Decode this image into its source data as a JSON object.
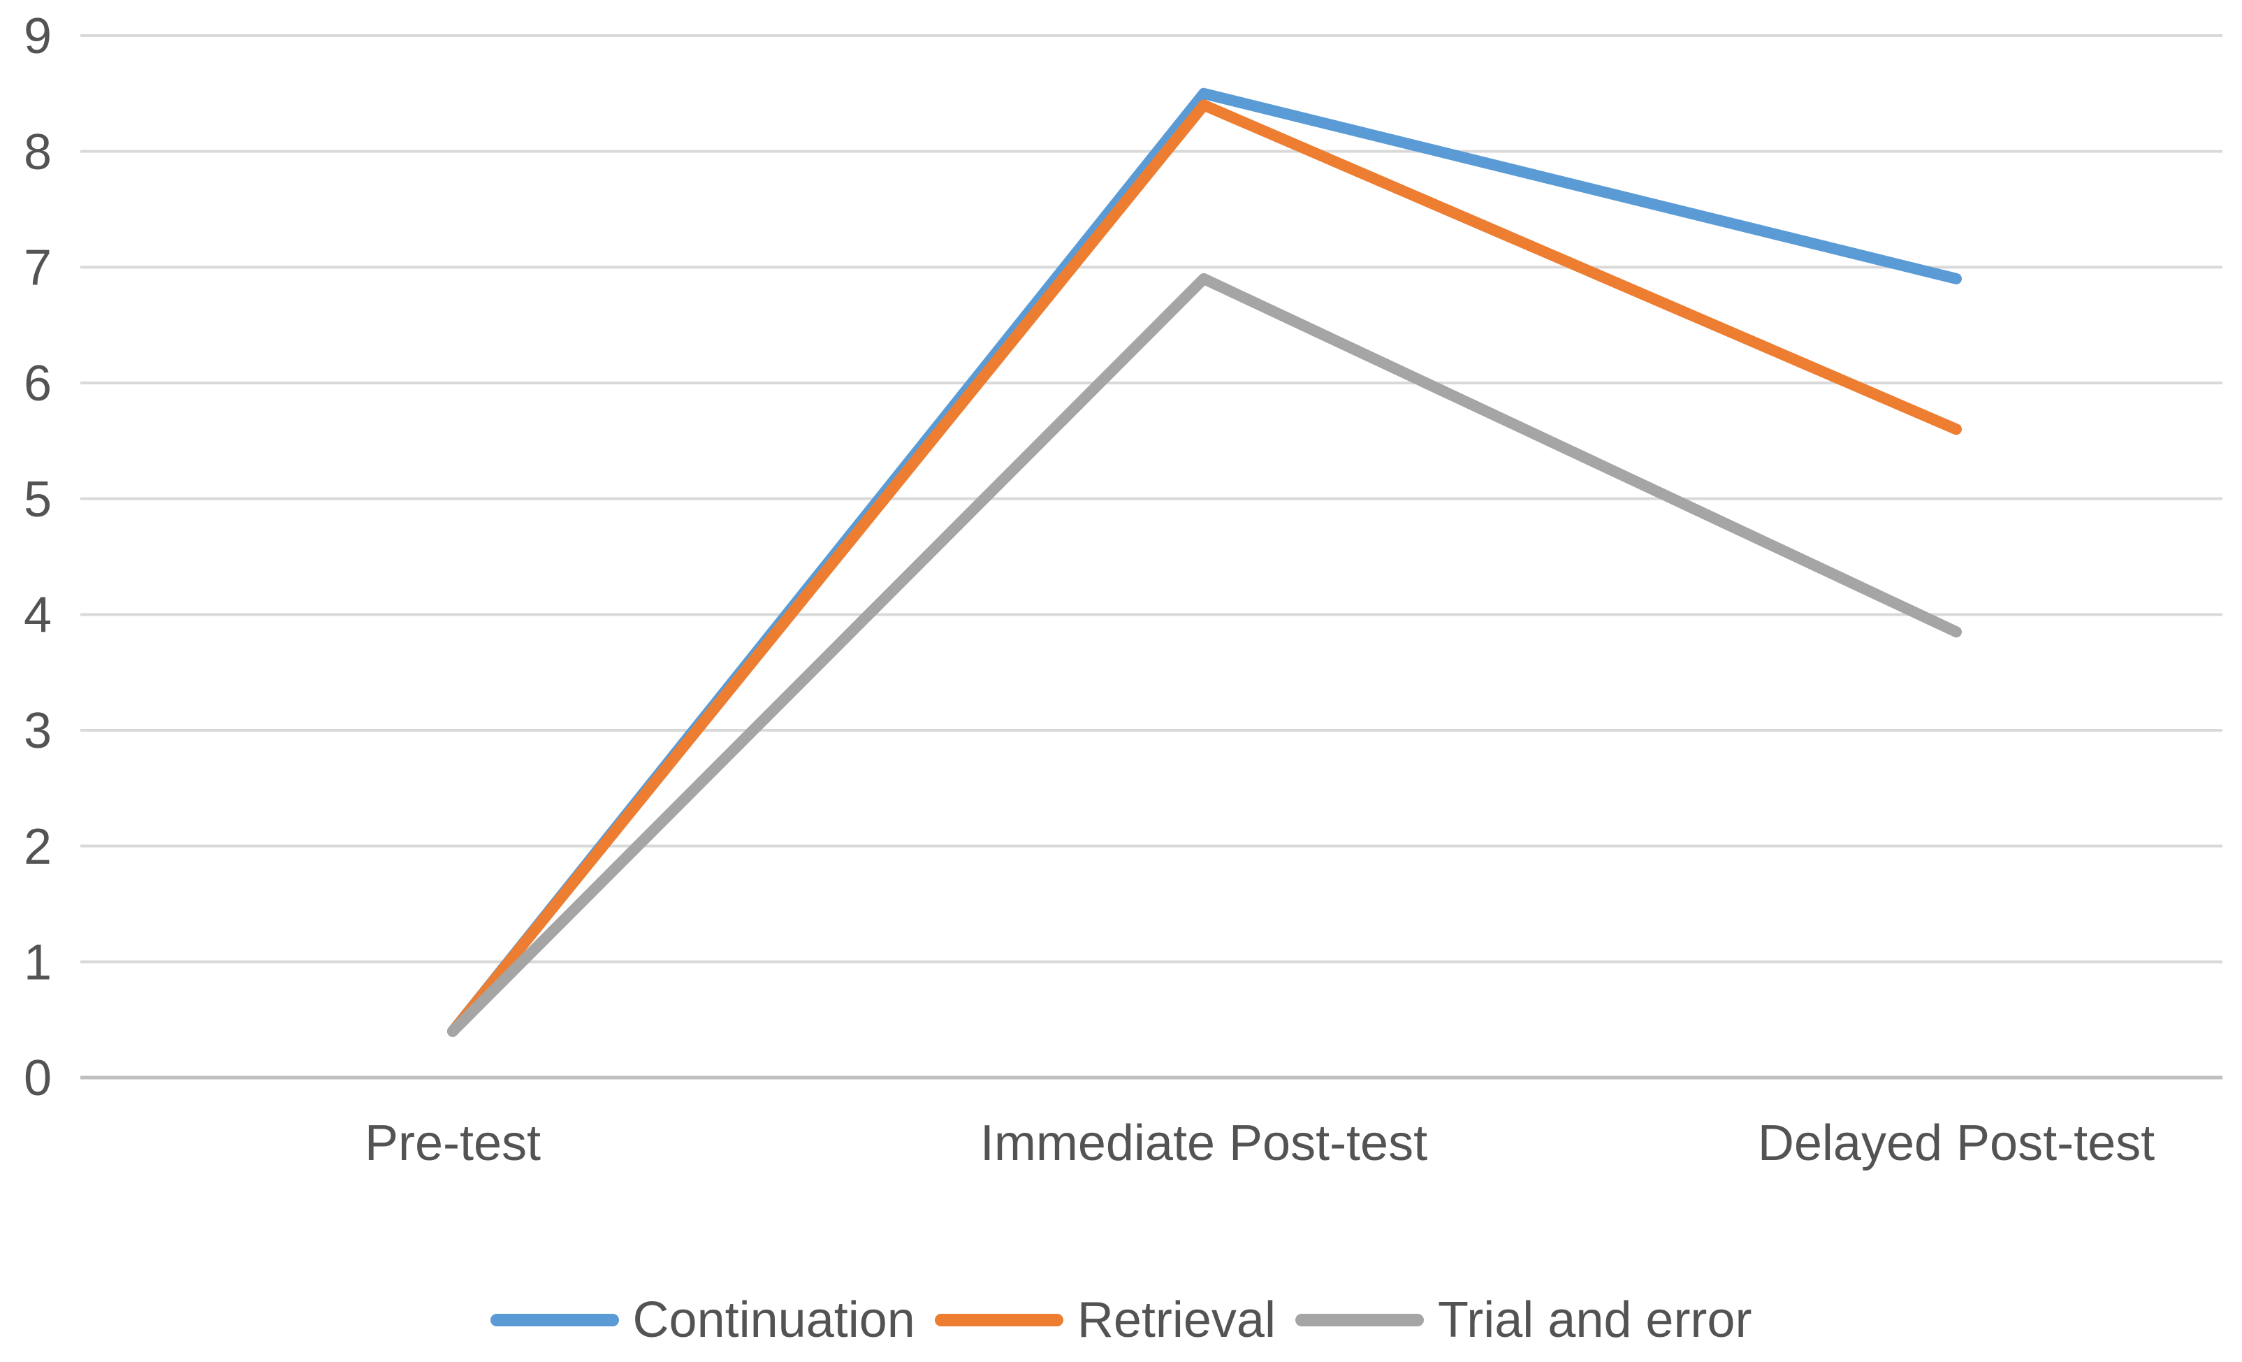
{
  "chart_data": {
    "type": "line",
    "title": "",
    "categories": [
      "Pre-test",
      "Immediate Post-test",
      "Delayed Post-test"
    ],
    "series": [
      {
        "name": "Continuation",
        "color": "#5B9BD5",
        "values": [
          0.4,
          8.5,
          6.9
        ]
      },
      {
        "name": "Retrieval",
        "color": "#ED7D31",
        "values": [
          0.4,
          8.4,
          5.6
        ]
      },
      {
        "name": "Trial and error",
        "color": "#A5A5A5",
        "values": [
          0.4,
          6.9,
          3.85
        ]
      }
    ],
    "xlabel": "",
    "ylabel": "",
    "ylim": [
      0,
      9
    ],
    "yticks": [
      0,
      1,
      2,
      3,
      4,
      5,
      6,
      7,
      8,
      9
    ],
    "grid": true,
    "legend_position": "bottom"
  },
  "colors": {
    "gridline": "#D9D9D9",
    "axis_line": "#BFBFBF",
    "label_text": "#535353",
    "background": "#FFFFFF"
  }
}
